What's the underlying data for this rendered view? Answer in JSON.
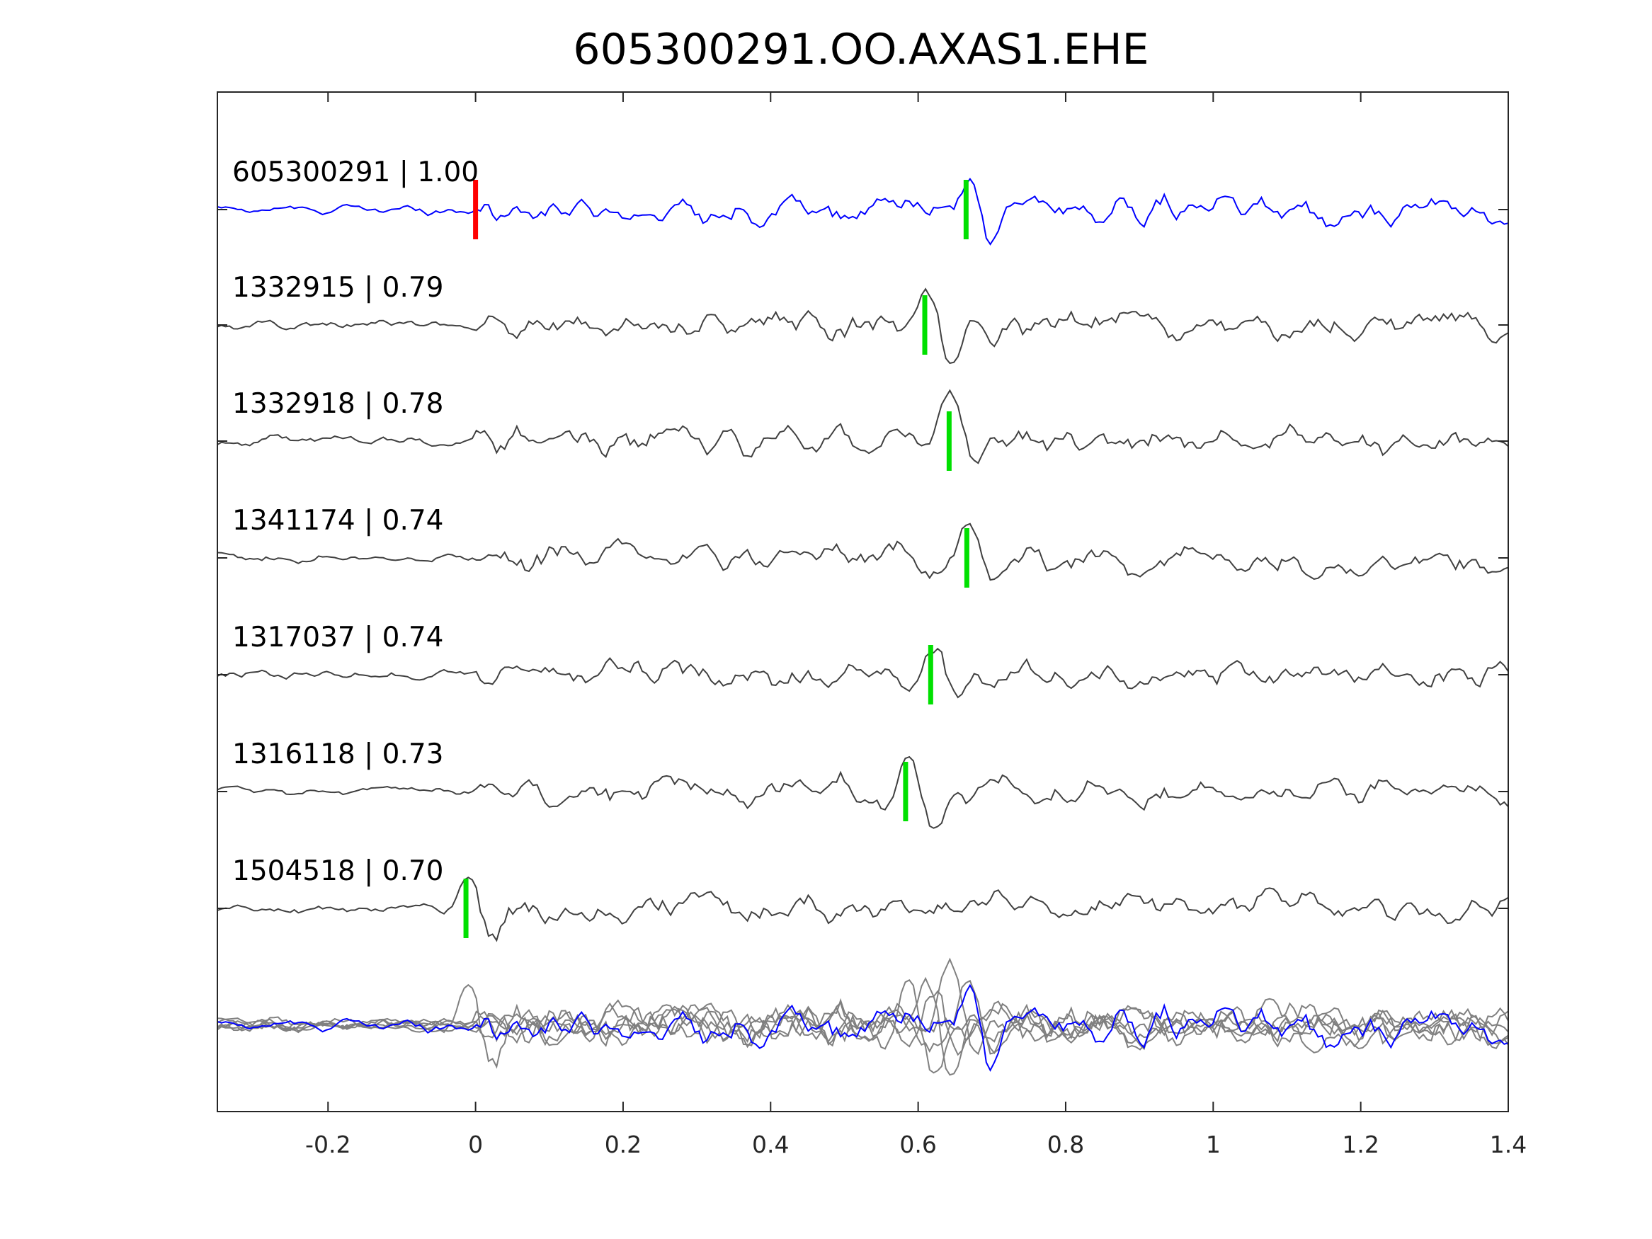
{
  "chart_data": {
    "type": "line",
    "title": "605300291.OO.AXAS1.EHE",
    "xlabel": "",
    "ylabel": "",
    "xlim": [
      -0.35,
      1.4
    ],
    "xticks": [
      -0.2,
      0,
      0.2,
      0.4,
      0.6,
      0.8,
      1,
      1.2,
      1.4
    ],
    "xtick_labels": [
      "-0.2",
      "0",
      "0.2",
      "0.4",
      "0.6",
      "0.8",
      "1",
      "1.2",
      "1.4"
    ],
    "grid": false,
    "colors": {
      "template": "#0000ff",
      "match": "#404040",
      "stack": "#808080",
      "origin_marker": "#ff0000",
      "pick_marker": "#00e000"
    },
    "origin_marker_time": 0,
    "traces": [
      {
        "id": "605300291",
        "cc": "1.00",
        "label": "605300291 | 1.00",
        "pick_time": 0.665,
        "template": true
      },
      {
        "id": "1332915",
        "cc": "0.79",
        "label": "1332915 | 0.79",
        "pick_time": 0.609
      },
      {
        "id": "1332918",
        "cc": "0.78",
        "label": "1332918 | 0.78",
        "pick_time": 0.642
      },
      {
        "id": "1341174",
        "cc": "0.74",
        "label": "1341174 | 0.74",
        "pick_time": 0.666
      },
      {
        "id": "1317037",
        "cc": "0.74",
        "label": "1317037 | 0.74",
        "pick_time": 0.617
      },
      {
        "id": "1316118",
        "cc": "0.73",
        "label": "1316118 | 0.73",
        "pick_time": 0.583
      },
      {
        "id": "1504518",
        "cc": "0.70",
        "label": "1504518 | 0.70",
        "pick_time": -0.013
      }
    ]
  }
}
